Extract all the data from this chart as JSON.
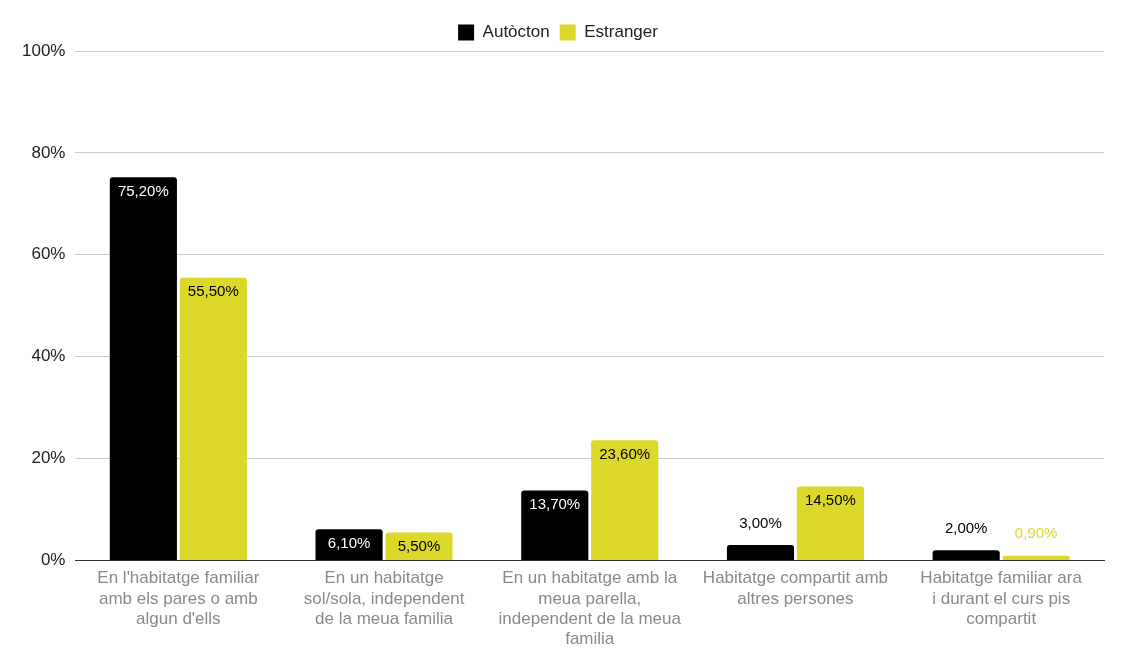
{
  "chart_data": {
    "type": "bar",
    "categories": [
      "En l'habitatge familiar amb els pares o amb algun d'ells",
      "En un habitatge sol/sola, independent de la meua familia",
      "En un habitatge amb la meua parella, independent de la meua familia",
      "Habitatge compartit amb altres persones",
      "Habitatge familiar ara i durant el curs pis compartit"
    ],
    "series": [
      {
        "name": "Autòcton",
        "color": "#000000",
        "values": [
          75.2,
          6.1,
          13.7,
          3.0,
          2.0
        ],
        "value_labels": [
          "75,20%",
          "6,10%",
          "13,70%",
          "3,00%",
          "2,00%"
        ]
      },
      {
        "name": "Estranger",
        "color": "#dcd82a",
        "values": [
          55.5,
          5.5,
          23.6,
          14.5,
          0.9
        ],
        "value_labels": [
          "55,50%",
          "5,50%",
          "23,60%",
          "14,50%",
          "0,90%"
        ]
      }
    ],
    "ylim": [
      0,
      100
    ],
    "yticks": [
      {
        "value": 0,
        "label": "0%"
      },
      {
        "value": 20,
        "label": "20%"
      },
      {
        "value": 40,
        "label": "40%"
      },
      {
        "value": 60,
        "label": "60%"
      },
      {
        "value": 80,
        "label": "80%"
      },
      {
        "value": 100,
        "label": "100%"
      }
    ],
    "grid": "y",
    "legend": "top"
  }
}
